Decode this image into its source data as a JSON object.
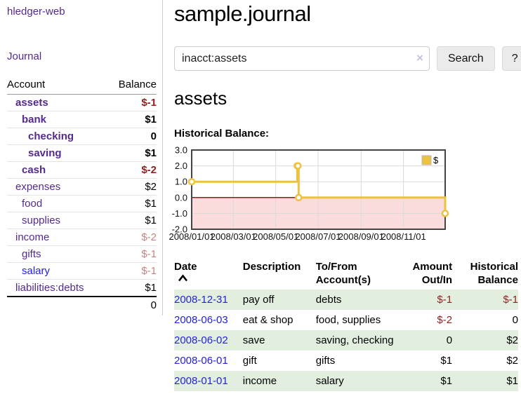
{
  "sidebar": {
    "brand": "hledger-web",
    "nav": {
      "journal": "Journal"
    },
    "accounts_table": {
      "headers": {
        "account": "Account",
        "balance": "Balance"
      },
      "rows": [
        {
          "name": "assets",
          "balance": "$-1"
        },
        {
          "name": "bank",
          "balance": "$1"
        },
        {
          "name": "checking",
          "balance": "0"
        },
        {
          "name": "saving",
          "balance": "$1"
        },
        {
          "name": "cash",
          "balance": "$-2"
        },
        {
          "name": "expenses",
          "balance": "$2"
        },
        {
          "name": "food",
          "balance": "$1"
        },
        {
          "name": "supplies",
          "balance": "$1"
        },
        {
          "name": "income",
          "balance": "$-2"
        },
        {
          "name": "gifts",
          "balance": "$-1"
        },
        {
          "name": "salary",
          "balance": "$-1"
        },
        {
          "name": "liabilities:debts",
          "balance": "$1"
        }
      ],
      "total": "0"
    }
  },
  "header": {
    "title": "sample.journal"
  },
  "search": {
    "value": "inacct:assets",
    "clear_icon": "×",
    "button": "Search",
    "help_button": "?"
  },
  "account_page": {
    "title": "assets"
  },
  "chart_data": {
    "type": "line",
    "step": true,
    "title": "Historical Balance:",
    "x_range": [
      "2008-01-01",
      "2008-12-31"
    ],
    "ylim": [
      -2,
      3
    ],
    "yticks": [
      "3.0",
      "2.0",
      "1.0",
      "0.0",
      "-1.0",
      "-2.0"
    ],
    "xticks": [
      {
        "date": "2008-01-01",
        "label": "2008/01/01"
      },
      {
        "date": "2008-03-01",
        "label": "2008/03/01"
      },
      {
        "date": "2008-05-01",
        "label": "2008/05/01"
      },
      {
        "date": "2008-07-01",
        "label": "2008/07/01"
      },
      {
        "date": "2008-09-01",
        "label": "2008/09/01"
      },
      {
        "date": "2008-11-01",
        "label": "2008/11/01"
      }
    ],
    "series": [
      {
        "name": "$",
        "color": "#EDC240",
        "points": [
          [
            "2008-01-01",
            1
          ],
          [
            "2008-06-01",
            2
          ],
          [
            "2008-06-02",
            2
          ],
          [
            "2008-06-03",
            0
          ],
          [
            "2008-12-31",
            -1
          ]
        ]
      }
    ],
    "legend_position": "top-right",
    "grid": true,
    "negative_region_fill": "#fbdcdc",
    "zero_line_color": "#8b1a1a"
  },
  "register_table": {
    "headers": [
      {
        "l1": "Date",
        "l2": ""
      },
      {
        "l1": "Description",
        "l2": ""
      },
      {
        "l1": "To/From",
        "l2": "Account(s)"
      },
      {
        "l1": "Amount",
        "l2": "Out/In"
      },
      {
        "l1": "Historical",
        "l2": "Balance"
      }
    ],
    "rows": [
      {
        "date": "2008-12-31",
        "description": "pay off",
        "accounts": "debts",
        "amount": "$-1",
        "balance": "$-1"
      },
      {
        "date": "2008-06-03",
        "description": "eat & shop",
        "accounts": "food, supplies",
        "amount": "$-2",
        "balance": "0"
      },
      {
        "date": "2008-06-02",
        "description": "save",
        "accounts": "saving, checking",
        "amount": "0",
        "balance": "$2"
      },
      {
        "date": "2008-06-01",
        "description": "gift",
        "accounts": "gifts",
        "amount": "$1",
        "balance": "$2"
      },
      {
        "date": "2008-01-01",
        "description": "income",
        "accounts": "salary",
        "amount": "$1",
        "balance": "$1"
      }
    ]
  },
  "colors": {
    "link_purple": "#552a90",
    "link_blue": "#2222dd",
    "negative_strong": "#941f1f",
    "negative_soft": "#c98383",
    "row_stripe_green": "#e2efdf",
    "chart_line_gold": "#EDC240",
    "chart_negative_pink": "#fbdcdc",
    "chart_zero_line": "#8b1a1a"
  }
}
